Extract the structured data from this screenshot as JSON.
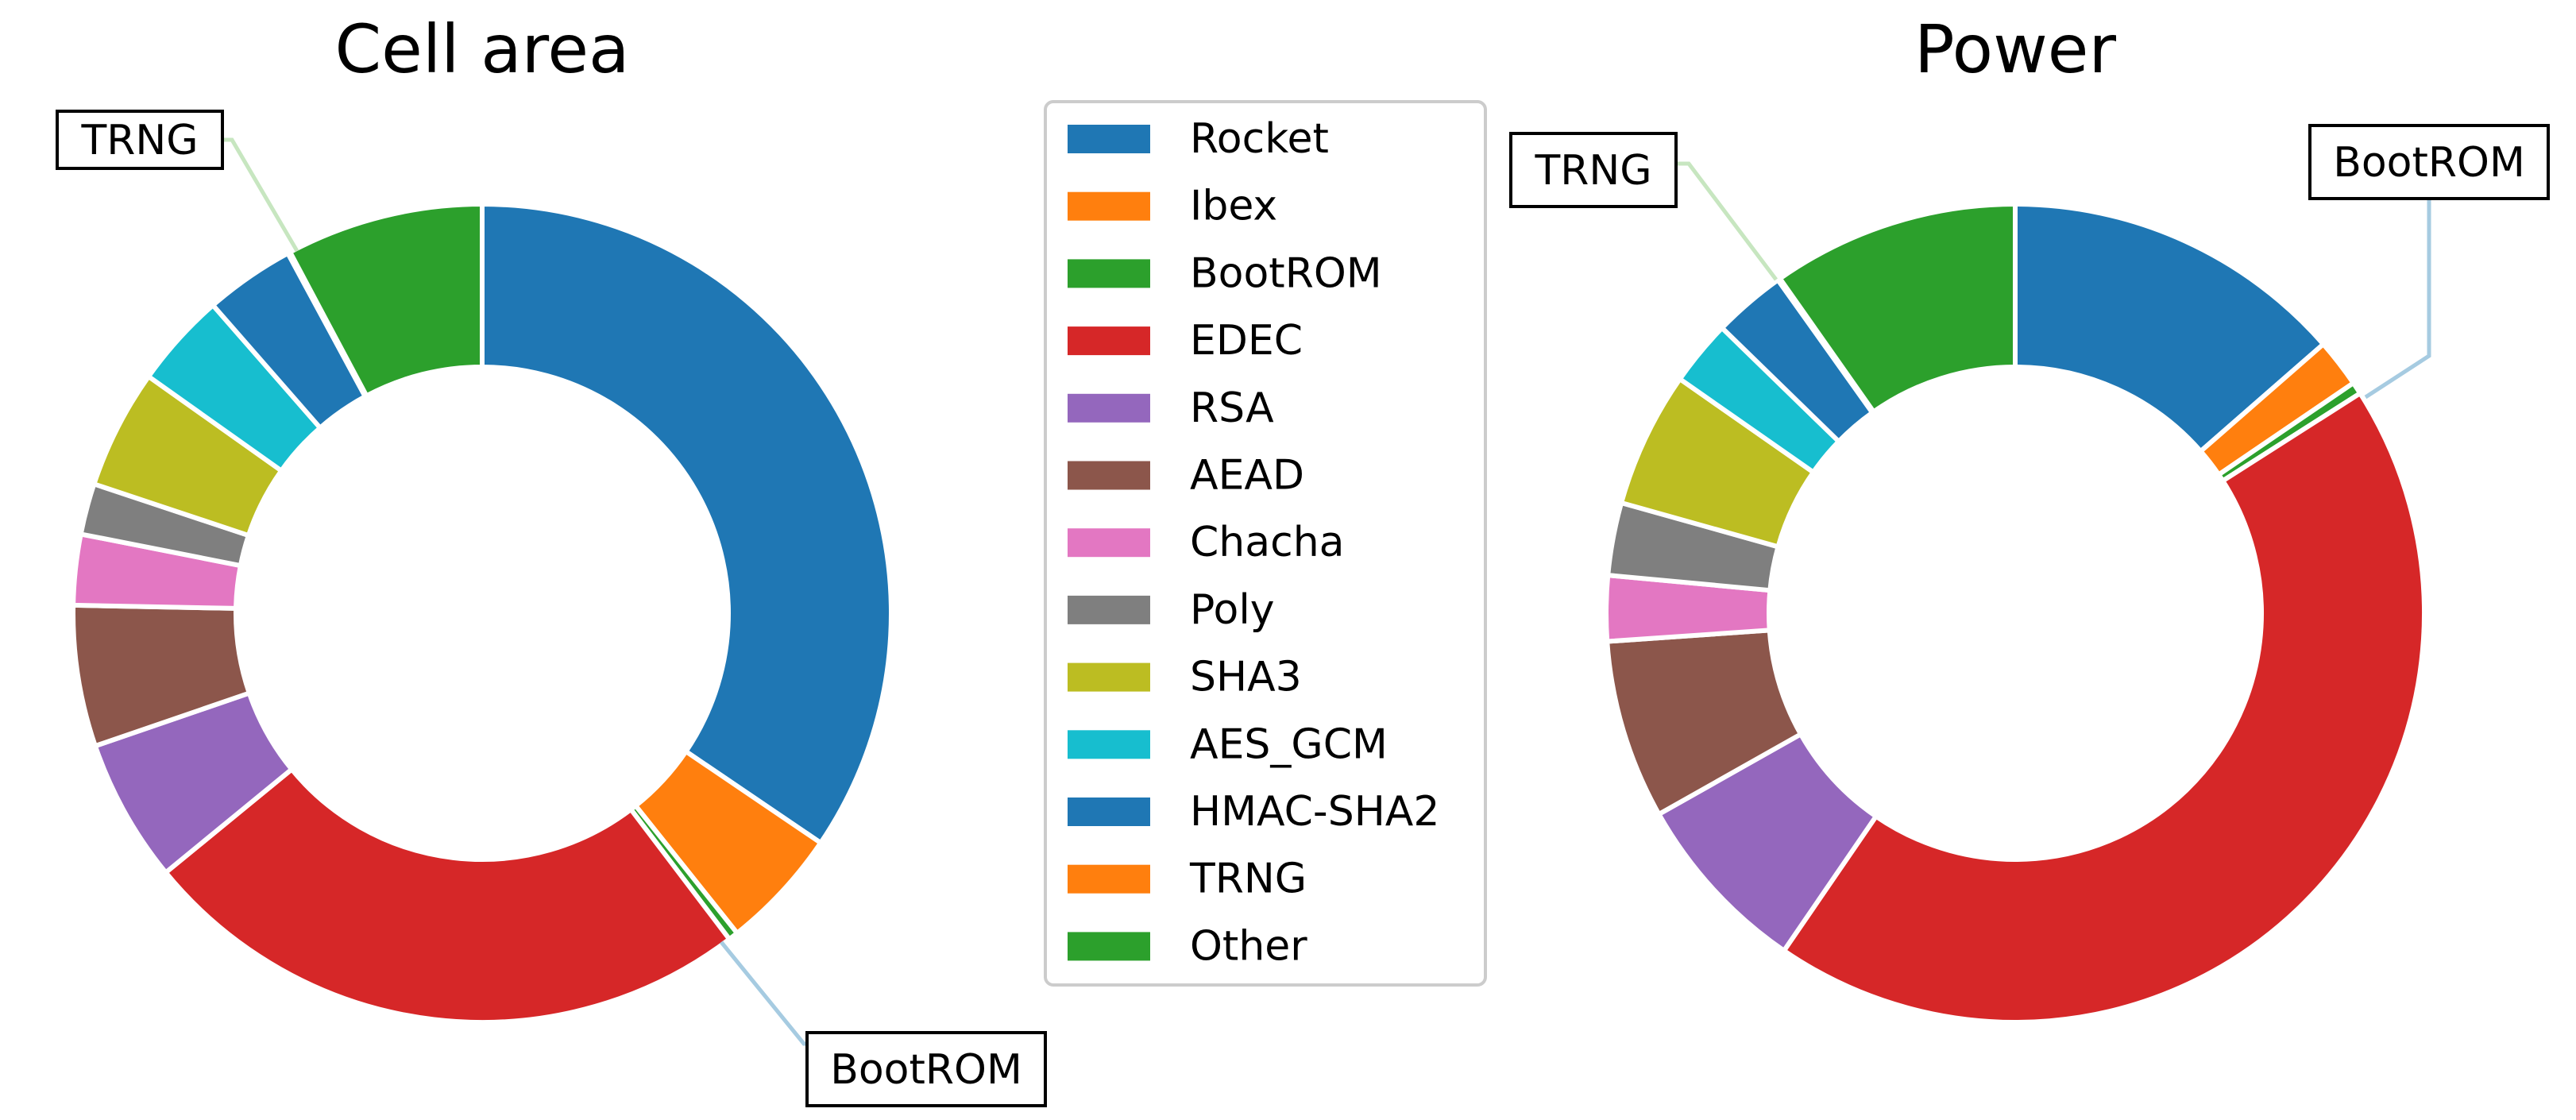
{
  "legend": {
    "items": [
      {
        "label": "Rocket",
        "color": "#1f77b4"
      },
      {
        "label": "Ibex",
        "color": "#ff7f0e"
      },
      {
        "label": "BootROM",
        "color": "#2ca02c"
      },
      {
        "label": "EDEC",
        "color": "#d62728"
      },
      {
        "label": "RSA",
        "color": "#9467bd"
      },
      {
        "label": "AEAD",
        "color": "#8c564b"
      },
      {
        "label": "Chacha",
        "color": "#e377c2"
      },
      {
        "label": "Poly",
        "color": "#7f7f7f"
      },
      {
        "label": "SHA3",
        "color": "#bcbd22"
      },
      {
        "label": "AES_GCM",
        "color": "#17becf"
      },
      {
        "label": "HMAC-SHA2",
        "color": "#1f77b4"
      },
      {
        "label": "TRNG",
        "color": "#ff7f0e"
      },
      {
        "label": "Other",
        "color": "#2ca02c"
      }
    ]
  },
  "chart_data": [
    {
      "type": "pie",
      "donut": true,
      "title": "Cell area",
      "start_angle_deg": 90,
      "direction": "clockwise",
      "categories": [
        "Rocket",
        "Ibex",
        "BootROM",
        "EDEC",
        "RSA",
        "AEAD",
        "Chacha",
        "Poly",
        "SHA3",
        "AES_GCM",
        "HMAC-SHA2",
        "TRNG",
        "Other"
      ],
      "values": [
        35.9,
        5.0,
        0.4,
        25.4,
        5.9,
        5.8,
        2.9,
        2.1,
        4.9,
        3.9,
        3.7,
        0.1,
        8.1
      ],
      "callouts": [
        {
          "label": "TRNG",
          "category": "TRNG"
        },
        {
          "label": "BootROM",
          "category": "BootROM"
        }
      ]
    },
    {
      "type": "pie",
      "donut": true,
      "title": "Power",
      "start_angle_deg": 90,
      "direction": "clockwise",
      "categories": [
        "Rocket",
        "Ibex",
        "BootROM",
        "EDEC",
        "RSA",
        "AEAD",
        "Chacha",
        "Poly",
        "SHA3",
        "AES_GCM",
        "HMAC-SHA2",
        "TRNG",
        "Other"
      ],
      "values": [
        14.2,
        2.0,
        0.5,
        45.6,
        7.6,
        7.4,
        2.7,
        3.0,
        5.6,
        2.7,
        3.0,
        0.1,
        10.2
      ],
      "callouts": [
        {
          "label": "TRNG",
          "category": "TRNG"
        },
        {
          "label": "BootROM",
          "category": "BootROM"
        }
      ]
    }
  ]
}
